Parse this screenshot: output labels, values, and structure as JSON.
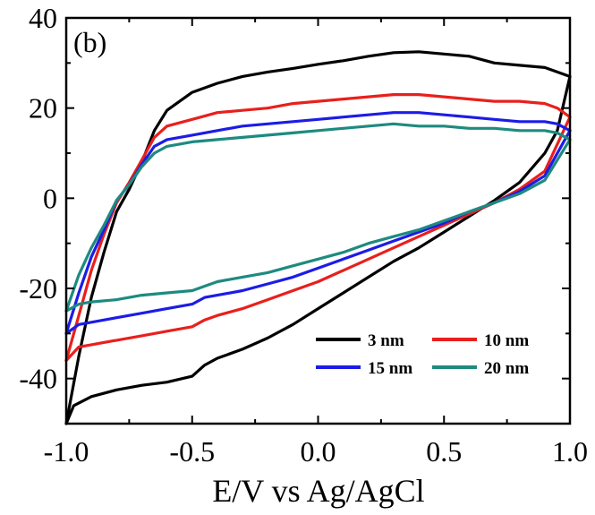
{
  "chart_data": {
    "type": "line",
    "panel_label": "(b)",
    "xlabel": "E/V vs Ag/AgCl",
    "ylabel": "",
    "xlim": [
      -1.0,
      1.0
    ],
    "ylim": [
      -50,
      40
    ],
    "x_ticks": [
      -1.0,
      -0.5,
      0.0,
      0.5,
      1.0
    ],
    "x_tick_labels": [
      "-1.0",
      "-0.5",
      "0.0",
      "0.5",
      "1.0"
    ],
    "y_ticks": [
      -40,
      -20,
      0,
      20,
      40
    ],
    "y_tick_labels": [
      "-40",
      "-20",
      "0",
      "20",
      "40"
    ],
    "grid": false,
    "legend_position": "bottom-right",
    "series": [
      {
        "name": "3 nm",
        "color": "#000000",
        "points": [
          [
            -1.0,
            -50
          ],
          [
            -0.97,
            -46
          ],
          [
            -0.9,
            -44
          ],
          [
            -0.8,
            -42.5
          ],
          [
            -0.7,
            -41.5
          ],
          [
            -0.6,
            -40.8
          ],
          [
            -0.5,
            -39.5
          ],
          [
            -0.45,
            -37
          ],
          [
            -0.4,
            -35.5
          ],
          [
            -0.3,
            -33.5
          ],
          [
            -0.2,
            -31
          ],
          [
            -0.1,
            -28
          ],
          [
            0.0,
            -24.5
          ],
          [
            0.1,
            -21
          ],
          [
            0.2,
            -17.5
          ],
          [
            0.3,
            -14
          ],
          [
            0.4,
            -11
          ],
          [
            0.5,
            -7.5
          ],
          [
            0.6,
            -4
          ],
          [
            0.7,
            -0.5
          ],
          [
            0.8,
            3.5
          ],
          [
            0.9,
            10
          ],
          [
            0.95,
            15
          ],
          [
            1.0,
            27
          ],
          [
            0.95,
            28
          ],
          [
            0.9,
            29
          ],
          [
            0.8,
            29.5
          ],
          [
            0.7,
            30
          ],
          [
            0.6,
            31.5
          ],
          [
            0.5,
            32
          ],
          [
            0.4,
            32.5
          ],
          [
            0.3,
            32.3
          ],
          [
            0.2,
            31.5
          ],
          [
            0.1,
            30.5
          ],
          [
            0.0,
            29.7
          ],
          [
            -0.1,
            28.8
          ],
          [
            -0.2,
            28
          ],
          [
            -0.3,
            27
          ],
          [
            -0.4,
            25.5
          ],
          [
            -0.5,
            23.5
          ],
          [
            -0.6,
            19.5
          ],
          [
            -0.65,
            15
          ],
          [
            -0.7,
            8
          ],
          [
            -0.75,
            2
          ],
          [
            -0.8,
            -3
          ],
          [
            -0.85,
            -12
          ],
          [
            -0.9,
            -22
          ],
          [
            -0.95,
            -35
          ],
          [
            -1.0,
            -50
          ]
        ]
      },
      {
        "name": "10 nm",
        "color": "#e8201c",
        "points": [
          [
            -1.0,
            -36
          ],
          [
            -0.95,
            -33
          ],
          [
            -0.9,
            -32.5
          ],
          [
            -0.8,
            -31.5
          ],
          [
            -0.7,
            -30.5
          ],
          [
            -0.6,
            -29.5
          ],
          [
            -0.5,
            -28.5
          ],
          [
            -0.45,
            -27
          ],
          [
            -0.4,
            -26
          ],
          [
            -0.3,
            -24.5
          ],
          [
            -0.2,
            -22.5
          ],
          [
            -0.1,
            -20.5
          ],
          [
            0.0,
            -18.5
          ],
          [
            0.1,
            -16
          ],
          [
            0.2,
            -13.5
          ],
          [
            0.3,
            -11
          ],
          [
            0.4,
            -8.5
          ],
          [
            0.5,
            -6
          ],
          [
            0.6,
            -3.5
          ],
          [
            0.7,
            -1
          ],
          [
            0.8,
            2
          ],
          [
            0.9,
            6
          ],
          [
            1.0,
            18
          ],
          [
            0.95,
            20
          ],
          [
            0.9,
            21
          ],
          [
            0.8,
            21.5
          ],
          [
            0.7,
            21.5
          ],
          [
            0.6,
            22
          ],
          [
            0.5,
            22.5
          ],
          [
            0.4,
            23
          ],
          [
            0.3,
            23
          ],
          [
            0.2,
            22.5
          ],
          [
            0.1,
            22
          ],
          [
            0.0,
            21.5
          ],
          [
            -0.1,
            21
          ],
          [
            -0.2,
            20
          ],
          [
            -0.3,
            19.5
          ],
          [
            -0.4,
            19
          ],
          [
            -0.5,
            17.5
          ],
          [
            -0.6,
            16
          ],
          [
            -0.65,
            13.5
          ],
          [
            -0.7,
            8.5
          ],
          [
            -0.75,
            3.5
          ],
          [
            -0.8,
            -1
          ],
          [
            -0.85,
            -8
          ],
          [
            -0.9,
            -16
          ],
          [
            -0.95,
            -26
          ],
          [
            -1.0,
            -36
          ]
        ]
      },
      {
        "name": "15 nm",
        "color": "#1c1ce6",
        "points": [
          [
            -1.0,
            -30
          ],
          [
            -0.95,
            -28
          ],
          [
            -0.9,
            -27.5
          ],
          [
            -0.8,
            -26.5
          ],
          [
            -0.7,
            -25.5
          ],
          [
            -0.6,
            -24.5
          ],
          [
            -0.5,
            -23.5
          ],
          [
            -0.45,
            -22
          ],
          [
            -0.4,
            -21.5
          ],
          [
            -0.3,
            -20.5
          ],
          [
            -0.2,
            -19
          ],
          [
            -0.1,
            -17.5
          ],
          [
            0.0,
            -15.5
          ],
          [
            0.1,
            -13.5
          ],
          [
            0.2,
            -11.5
          ],
          [
            0.3,
            -9.5
          ],
          [
            0.4,
            -7.5
          ],
          [
            0.5,
            -5.5
          ],
          [
            0.6,
            -3
          ],
          [
            0.7,
            -1
          ],
          [
            0.8,
            1.5
          ],
          [
            0.9,
            5
          ],
          [
            1.0,
            15
          ],
          [
            0.95,
            16.5
          ],
          [
            0.9,
            17
          ],
          [
            0.8,
            17
          ],
          [
            0.7,
            17.5
          ],
          [
            0.6,
            18
          ],
          [
            0.5,
            18.5
          ],
          [
            0.4,
            19
          ],
          [
            0.3,
            19
          ],
          [
            0.2,
            18.5
          ],
          [
            0.1,
            18
          ],
          [
            0.0,
            17.5
          ],
          [
            -0.1,
            17
          ],
          [
            -0.2,
            16.5
          ],
          [
            -0.3,
            16
          ],
          [
            -0.4,
            15
          ],
          [
            -0.5,
            14
          ],
          [
            -0.6,
            13
          ],
          [
            -0.65,
            11.5
          ],
          [
            -0.7,
            7.5
          ],
          [
            -0.75,
            3
          ],
          [
            -0.8,
            -0.5
          ],
          [
            -0.85,
            -7
          ],
          [
            -0.9,
            -13
          ],
          [
            -0.95,
            -21
          ],
          [
            -1.0,
            -30
          ]
        ]
      },
      {
        "name": "20 nm",
        "color": "#1e8a80",
        "points": [
          [
            -1.0,
            -25
          ],
          [
            -0.95,
            -23.5
          ],
          [
            -0.9,
            -23
          ],
          [
            -0.8,
            -22.5
          ],
          [
            -0.7,
            -21.5
          ],
          [
            -0.6,
            -21
          ],
          [
            -0.5,
            -20.5
          ],
          [
            -0.45,
            -19.5
          ],
          [
            -0.4,
            -18.5
          ],
          [
            -0.3,
            -17.5
          ],
          [
            -0.2,
            -16.5
          ],
          [
            -0.1,
            -15
          ],
          [
            0.0,
            -13.5
          ],
          [
            0.1,
            -12
          ],
          [
            0.2,
            -10
          ],
          [
            0.3,
            -8.5
          ],
          [
            0.4,
            -7
          ],
          [
            0.5,
            -5
          ],
          [
            0.6,
            -3
          ],
          [
            0.7,
            -1
          ],
          [
            0.8,
            1
          ],
          [
            0.9,
            4
          ],
          [
            1.0,
            13
          ],
          [
            0.95,
            14.5
          ],
          [
            0.9,
            15
          ],
          [
            0.8,
            15
          ],
          [
            0.7,
            15.5
          ],
          [
            0.6,
            15.5
          ],
          [
            0.5,
            16
          ],
          [
            0.4,
            16
          ],
          [
            0.3,
            16.5
          ],
          [
            0.2,
            16
          ],
          [
            0.1,
            15.5
          ],
          [
            0.0,
            15
          ],
          [
            -0.1,
            14.5
          ],
          [
            -0.2,
            14
          ],
          [
            -0.3,
            13.5
          ],
          [
            -0.4,
            13
          ],
          [
            -0.5,
            12.5
          ],
          [
            -0.6,
            11.5
          ],
          [
            -0.65,
            10
          ],
          [
            -0.7,
            7
          ],
          [
            -0.75,
            3
          ],
          [
            -0.8,
            -0.5
          ],
          [
            -0.85,
            -6
          ],
          [
            -0.9,
            -11
          ],
          [
            -0.95,
            -17
          ],
          [
            -1.0,
            -25
          ]
        ]
      }
    ]
  }
}
